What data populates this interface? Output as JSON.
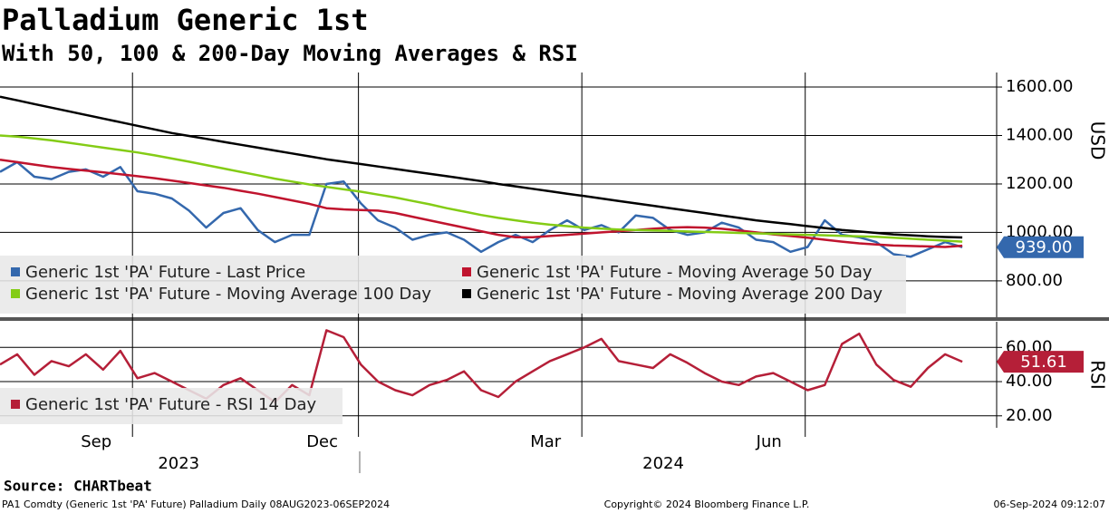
{
  "title": "Palladium Generic 1st",
  "subtitle": "With 50, 100 & 200-Day Moving Averages & RSI",
  "source": "Source: CHARTbeat",
  "footer": {
    "left": "PA1 Comdty (Generic 1st 'PA' Future) Palladium  Daily 08AUG2023-06SEP2024",
    "center": "Copyright© 2024 Bloomberg Finance L.P.",
    "right": "06-Sep-2024 09:12:07"
  },
  "chart_data": [
    {
      "type": "line",
      "ylabel": "USD",
      "categories": [
        null,
        null,
        null,
        null,
        null,
        null,
        null,
        null,
        null,
        null,
        null,
        null,
        null,
        null,
        null,
        null,
        null,
        null,
        null,
        null,
        null,
        null,
        null,
        null,
        null,
        null,
        null,
        null,
        null,
        null,
        null,
        null,
        null,
        null,
        null,
        null,
        null,
        null,
        null,
        null,
        null,
        null,
        null,
        null,
        null,
        null,
        null,
        null,
        null,
        null,
        null,
        null,
        null,
        null,
        null,
        null,
        null
      ],
      "xlim": [
        0,
        58
      ],
      "ylim": [
        650,
        1660
      ],
      "yticks": [
        {
          "value": 800,
          "label": "800.00"
        },
        {
          "value": 1000,
          "label": "1000.00"
        },
        {
          "value": 1200,
          "label": "1200.00"
        },
        {
          "value": 1400,
          "label": "1400.00"
        },
        {
          "value": 1600,
          "label": "1600.00"
        }
      ],
      "grid": true,
      "legend": "lower left",
      "series": [
        {
          "name": "Generic 1st 'PA' Future - Last Price",
          "color": "#3468ad",
          "values": [
            1250,
            1290,
            1230,
            1220,
            1250,
            1260,
            1230,
            1270,
            1170,
            1160,
            1140,
            1090,
            1020,
            1080,
            1100,
            1010,
            960,
            990,
            990,
            1200,
            1210,
            1120,
            1050,
            1020,
            970,
            990,
            1000,
            970,
            920,
            960,
            990,
            960,
            1010,
            1050,
            1010,
            1030,
            1000,
            1070,
            1060,
            1010,
            990,
            1000,
            1040,
            1020,
            970,
            960,
            920,
            940,
            1050,
            990,
            980,
            960,
            910,
            900,
            930,
            960,
            939
          ],
          "value_labels": [
            null,
            null,
            null,
            null,
            null,
            null,
            null,
            null,
            null,
            null,
            null,
            null,
            null,
            null,
            null,
            null,
            null,
            null,
            null,
            null,
            null,
            null,
            null,
            null,
            null,
            null,
            null,
            null,
            null,
            null,
            null,
            null,
            null,
            null,
            null,
            null,
            null,
            null,
            null,
            null,
            null,
            null,
            null,
            null,
            null,
            null,
            null,
            null,
            null,
            null,
            null,
            null,
            null,
            null,
            null,
            null,
            "939.00"
          ]
        },
        {
          "name": "Generic 1st 'PA' Future - Moving Average 50 Day",
          "color": "#c0142e",
          "values": [
            1300,
            1290,
            1280,
            1270,
            1262,
            1255,
            1248,
            1240,
            1232,
            1224,
            1214,
            1204,
            1194,
            1184,
            1172,
            1160,
            1146,
            1132,
            1118,
            1100,
            1095,
            1092,
            1090,
            1080,
            1065,
            1050,
            1035,
            1020,
            1005,
            990,
            980,
            980,
            985,
            990,
            995,
            1000,
            1005,
            1010,
            1015,
            1020,
            1022,
            1020,
            1015,
            1008,
            1000,
            992,
            985,
            978,
            970,
            962,
            955,
            950,
            946,
            944,
            942,
            940,
            945
          ]
        },
        {
          "name": "Generic 1st 'PA' Future - Moving Average 100 Day",
          "color": "#84cc16",
          "values": [
            1400,
            1395,
            1388,
            1380,
            1370,
            1360,
            1350,
            1340,
            1330,
            1318,
            1305,
            1292,
            1278,
            1264,
            1250,
            1236,
            1222,
            1210,
            1198,
            1188,
            1178,
            1168,
            1156,
            1144,
            1130,
            1116,
            1100,
            1086,
            1072,
            1060,
            1050,
            1040,
            1032,
            1026,
            1020,
            1016,
            1012,
            1010,
            1008,
            1006,
            1004,
            1002,
            1000,
            998,
            996,
            994,
            992,
            990,
            988,
            986,
            984,
            982,
            978,
            974,
            970,
            966,
            962
          ]
        },
        {
          "name": "Generic 1st 'PA' Future - Moving Average 200 Day",
          "color": "#000000",
          "values": [
            1560,
            1545,
            1530,
            1515,
            1500,
            1485,
            1470,
            1455,
            1440,
            1425,
            1410,
            1398,
            1386,
            1374,
            1362,
            1350,
            1338,
            1326,
            1314,
            1302,
            1292,
            1282,
            1272,
            1262,
            1252,
            1242,
            1232,
            1222,
            1212,
            1200,
            1190,
            1180,
            1170,
            1160,
            1150,
            1140,
            1130,
            1120,
            1110,
            1100,
            1090,
            1080,
            1070,
            1060,
            1050,
            1042,
            1034,
            1026,
            1018,
            1010,
            1004,
            998,
            992,
            988,
            984,
            981,
            979
          ]
        }
      ]
    },
    {
      "type": "line",
      "ylabel": "RSI",
      "categories": [
        null,
        null,
        null,
        null,
        null,
        null,
        null,
        null,
        null,
        null,
        null,
        null,
        null,
        null,
        null,
        null,
        null,
        null,
        null,
        null,
        null,
        null,
        null,
        null,
        null,
        null,
        null,
        null,
        null,
        null,
        null,
        null,
        null,
        null,
        null,
        null,
        null,
        null,
        null,
        null,
        null,
        null,
        null,
        null,
        null,
        null,
        null,
        null,
        null,
        null,
        null,
        null,
        null,
        null,
        null,
        null,
        null
      ],
      "xlim": [
        0,
        58
      ],
      "ylim": [
        13,
        75
      ],
      "yticks": [
        {
          "value": 20,
          "label": "20.00"
        },
        {
          "value": 40,
          "label": "40.00"
        },
        {
          "value": 60,
          "label": "60.00"
        }
      ],
      "xticks": [
        {
          "value": 7.71,
          "label": "Sep"
        },
        {
          "value": 20.86,
          "label": "Dec"
        },
        {
          "value": 33.86,
          "label": "Mar"
        },
        {
          "value": 46.86,
          "label": "Jun"
        }
      ],
      "year_labels": [
        {
          "value": 10.4,
          "label": "2023"
        },
        {
          "value": 38.6,
          "label": "2024"
        }
      ],
      "grid": true,
      "legend": "lower left",
      "series": [
        {
          "name": "Generic 1st 'PA' Future - RSI 14 Day",
          "color": "#b51f38",
          "values": [
            50,
            56,
            44,
            52,
            49,
            56,
            47,
            58,
            42,
            45,
            40,
            35,
            30,
            38,
            42,
            35,
            28,
            38,
            32,
            70,
            66,
            50,
            40,
            35,
            32,
            38,
            41,
            46,
            35,
            31,
            40,
            46,
            52,
            56,
            60,
            65,
            52,
            50,
            48,
            56,
            51,
            45,
            40,
            38,
            43,
            45,
            40,
            35,
            38,
            62,
            68,
            50,
            41,
            37,
            48,
            56,
            51.61
          ],
          "value_labels": [
            null,
            null,
            null,
            null,
            null,
            null,
            null,
            null,
            null,
            null,
            null,
            null,
            null,
            null,
            null,
            null,
            null,
            null,
            null,
            null,
            null,
            null,
            null,
            null,
            null,
            null,
            null,
            null,
            null,
            null,
            null,
            null,
            null,
            null,
            null,
            null,
            null,
            null,
            null,
            null,
            null,
            null,
            null,
            null,
            null,
            null,
            null,
            null,
            null,
            null,
            null,
            null,
            null,
            null,
            null,
            null,
            "51.61"
          ]
        }
      ]
    }
  ]
}
